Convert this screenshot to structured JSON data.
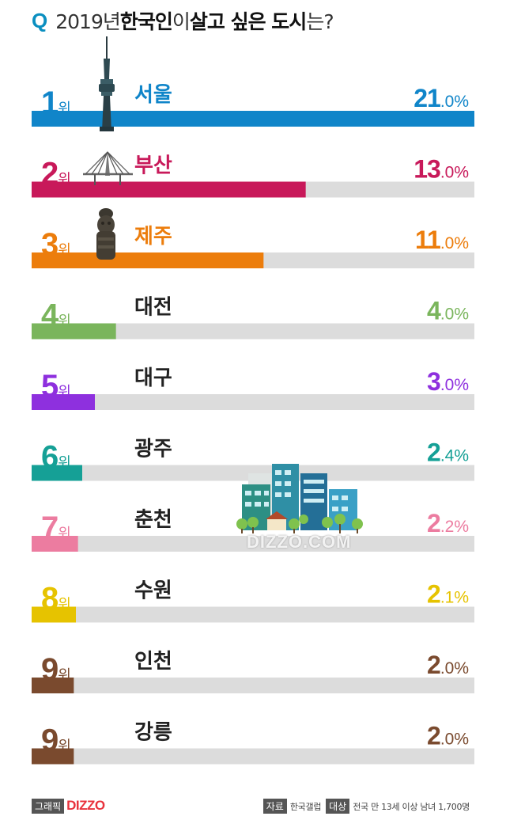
{
  "header": {
    "q": "Q",
    "title_year": "2019년 ",
    "title_bold1": "한국인",
    "title_mid": "이 ",
    "title_bold2": "살고 싶은 도시",
    "title_end": "는?"
  },
  "chart_data": {
    "type": "bar",
    "rank_suffix": "위",
    "xlim": [
      0,
      21
    ],
    "track_color": "#dcdcdc",
    "rows": [
      {
        "rank": "1",
        "city": "서울",
        "value": 21.0,
        "pct_int": "21",
        "pct_dec": ".0%",
        "color": "#1085c9"
      },
      {
        "rank": "2",
        "city": "부산",
        "value": 13.0,
        "pct_int": "13",
        "pct_dec": ".0%",
        "color": "#c8195a"
      },
      {
        "rank": "3",
        "city": "제주",
        "value": 11.0,
        "pct_int": "11",
        "pct_dec": ".0%",
        "color": "#ec7d0c"
      },
      {
        "rank": "4",
        "city": "대전",
        "value": 4.0,
        "pct_int": "4",
        "pct_dec": ".0%",
        "color": "#7ab55c"
      },
      {
        "rank": "5",
        "city": "대구",
        "value": 3.0,
        "pct_int": "3",
        "pct_dec": ".0%",
        "color": "#8e30de"
      },
      {
        "rank": "6",
        "city": "광주",
        "value": 2.4,
        "pct_int": "2",
        "pct_dec": ".4%",
        "color": "#15a096"
      },
      {
        "rank": "7",
        "city": "춘천",
        "value": 2.2,
        "pct_int": "2",
        "pct_dec": ".2%",
        "color": "#ec7ca0"
      },
      {
        "rank": "8",
        "city": "수원",
        "value": 2.1,
        "pct_int": "2",
        "pct_dec": ".1%",
        "color": "#e6c300"
      },
      {
        "rank": "9",
        "city": "인천",
        "value": 2.0,
        "pct_int": "2",
        "pct_dec": ".0%",
        "color": "#7a4a2e"
      },
      {
        "rank": "9",
        "city": "강릉",
        "value": 2.0,
        "pct_int": "2",
        "pct_dec": ".0%",
        "color": "#7a4a2e"
      }
    ]
  },
  "footer": {
    "graphic_tag": "그래픽",
    "brand": "DIZZO",
    "source_tag": "자료",
    "source": "한국갤럽",
    "target_tag": "대상",
    "target": "전국 만 13세 이상 남녀 1,700명"
  },
  "watermark": "DIZZO.COM",
  "icons": [
    "namsan-tower-icon",
    "bridge-icon",
    "dol-hareubang-icon",
    "city-buildings-icon"
  ]
}
